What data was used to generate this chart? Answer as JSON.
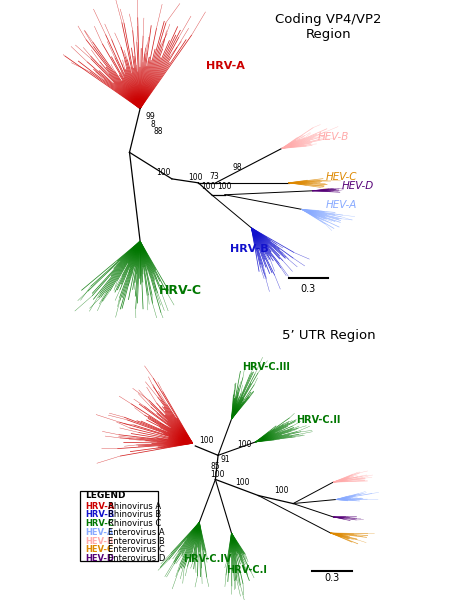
{
  "title1": "Coding VP4/VP2\nRegion",
  "title2": "5’ UTR Region",
  "colors": {
    "HRV-A": "#cc0000",
    "HRV-B": "#1111cc",
    "HRV-C": "#007700",
    "HEV-A": "#88aaff",
    "HEV-B": "#ffaaaa",
    "HEV-C": "#dd8800",
    "HEV-D": "#550077"
  },
  "legend_entries": [
    [
      "HRV-A",
      "#cc0000",
      "Rhinovirus A"
    ],
    [
      "HRV-B",
      "#1111cc",
      "Rhinovirus B"
    ],
    [
      "HRV-C",
      "#007700",
      "Rhinovirus C"
    ],
    [
      "HEV-A",
      "#88aaff",
      "Enterovirus A"
    ],
    [
      "HEV-B",
      "#ffaaaa",
      "Enterovirus B"
    ],
    [
      "HEV-C",
      "#dd8800",
      "Enterovirus C"
    ],
    [
      "HEV-D",
      "#550077",
      "Enterovirus D"
    ]
  ]
}
